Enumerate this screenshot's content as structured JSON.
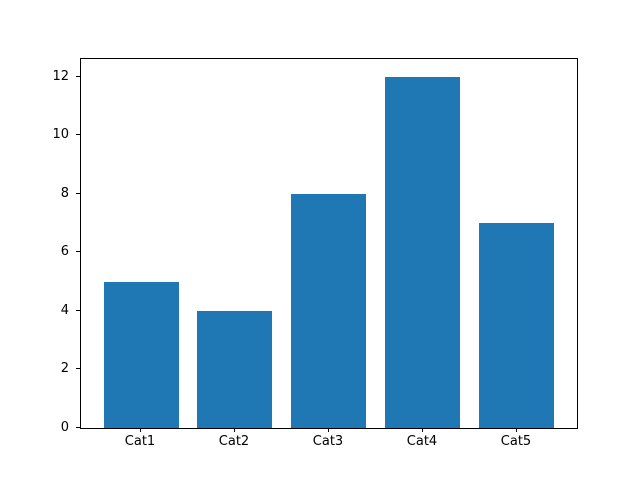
{
  "chart_data": {
    "type": "bar",
    "title": "",
    "xlabel": "",
    "ylabel": "",
    "categories": [
      "Cat1",
      "Cat2",
      "Cat3",
      "Cat4",
      "Cat5"
    ],
    "values": [
      5,
      4,
      8,
      12,
      7
    ],
    "yticks": [
      0,
      2,
      4,
      6,
      8,
      10,
      12
    ],
    "ylim": [
      0,
      12.6
    ],
    "bar_color": "#1f77b4",
    "axis_color": "#000000",
    "background_color": "#ffffff",
    "grid": "off",
    "legend": "none"
  }
}
